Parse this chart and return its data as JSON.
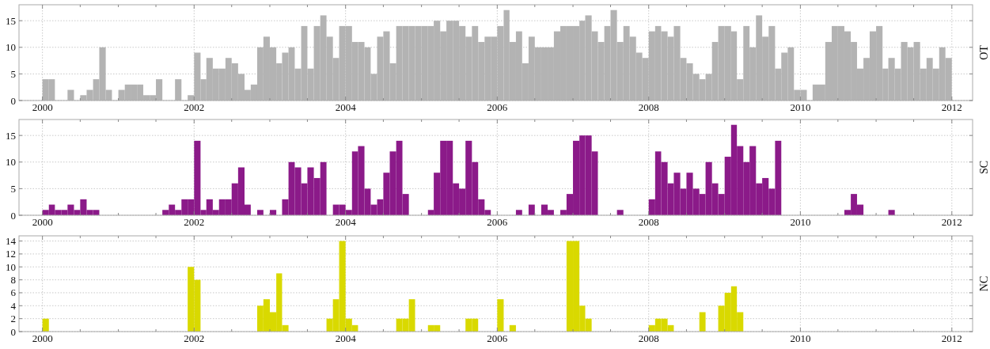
{
  "chart_data": [
    {
      "type": "bar",
      "ylabel": "OT",
      "grid": true,
      "xlim": [
        "1999-09-10",
        "2012-04-10"
      ],
      "ylim": [
        0,
        18
      ],
      "yticks": [
        0,
        5,
        10,
        15
      ],
      "xticks": [
        "2000",
        {
          "value": "2000-07",
          "label": null
        },
        {
          "value": "2001",
          "label": null
        },
        {
          "value": "2001-07",
          "label": null
        },
        "2002",
        {
          "value": "2002-07",
          "label": null
        },
        {
          "value": "2003",
          "label": null
        },
        {
          "value": "2003-07",
          "label": null
        },
        "2004",
        {
          "value": "2004-07",
          "label": null
        },
        {
          "value": "2005",
          "label": null
        },
        {
          "value": "2005-07",
          "label": null
        },
        "2006",
        {
          "value": "2006-07",
          "label": null
        },
        {
          "value": "2007",
          "label": null
        },
        {
          "value": "2007-07",
          "label": null
        },
        "2008",
        {
          "value": "2008-07",
          "label": null
        },
        {
          "value": "2009",
          "label": null
        },
        {
          "value": "2009-07",
          "label": null
        },
        "2010",
        {
          "value": "2010-07",
          "label": null
        },
        {
          "value": "2011",
          "label": null
        },
        {
          "value": "2011-07",
          "label": null
        },
        "2012"
      ],
      "x": [
        "2000-01",
        "2000-02",
        "2000-03",
        "2000-04",
        "2000-05",
        "2000-06",
        "2000-07",
        "2000-08",
        "2000-09",
        "2000-10",
        "2000-11",
        "2000-12",
        "2001-01",
        "2001-02",
        "2001-03",
        "2001-04",
        "2001-05",
        "2001-06",
        "2001-07",
        "2001-08",
        "2001-09",
        "2001-10",
        "2001-11",
        "2001-12",
        "2002-01",
        "2002-02",
        "2002-03",
        "2002-04",
        "2002-05",
        "2002-06",
        "2002-07",
        "2002-08",
        "2002-09",
        "2002-10",
        "2002-11",
        "2002-12",
        "2003-01",
        "2003-02",
        "2003-03",
        "2003-04",
        "2003-05",
        "2003-06",
        "2003-07",
        "2003-08",
        "2003-09",
        "2003-10",
        "2003-11",
        "2003-12",
        "2004-01",
        "2004-02",
        "2004-03",
        "2004-04",
        "2004-05",
        "2004-06",
        "2004-07",
        "2004-08",
        "2004-09",
        "2004-10",
        "2004-11",
        "2004-12",
        "2005-01",
        "2005-02",
        "2005-03",
        "2005-04",
        "2005-05",
        "2005-06",
        "2005-07",
        "2005-08",
        "2005-09",
        "2005-10",
        "2005-11",
        "2005-12",
        "2006-01",
        "2006-02",
        "2006-03",
        "2006-04",
        "2006-05",
        "2006-06",
        "2006-07",
        "2006-08",
        "2006-09",
        "2006-10",
        "2006-11",
        "2006-12",
        "2007-01",
        "2007-02",
        "2007-03",
        "2007-04",
        "2007-05",
        "2007-06",
        "2007-07",
        "2007-08",
        "2007-09",
        "2007-10",
        "2007-11",
        "2007-12",
        "2008-01",
        "2008-02",
        "2008-03",
        "2008-04",
        "2008-05",
        "2008-06",
        "2008-07",
        "2008-08",
        "2008-09",
        "2008-10",
        "2008-11",
        "2008-12",
        "2009-01",
        "2009-02",
        "2009-03",
        "2009-04",
        "2009-05",
        "2009-06",
        "2009-07",
        "2009-08",
        "2009-09",
        "2009-10",
        "2009-11",
        "2009-12",
        "2010-01",
        "2010-02",
        "2010-03",
        "2010-04",
        "2010-05",
        "2010-06",
        "2010-07",
        "2010-08",
        "2010-09",
        "2010-10",
        "2010-11",
        "2010-12",
        "2011-01",
        "2011-02",
        "2011-03",
        "2011-04",
        "2011-05",
        "2011-06",
        "2011-07",
        "2011-08",
        "2011-09",
        "2011-10",
        "2011-11",
        "2011-12"
      ],
      "series": [
        {
          "color": "#b3b3b3",
          "values": [
            4,
            4,
            0,
            0,
            2,
            0,
            1,
            2,
            4,
            10,
            2,
            0,
            2,
            3,
            3,
            3,
            1,
            1,
            4,
            0,
            0,
            4,
            0,
            1,
            9,
            4,
            8,
            6,
            6,
            8,
            7,
            5,
            2,
            3,
            10,
            12,
            10,
            7,
            9,
            10,
            6,
            14,
            6,
            14,
            16,
            12,
            8,
            14,
            14,
            11,
            11,
            10,
            5,
            12,
            13,
            7,
            14,
            14,
            14,
            14,
            14,
            14,
            15,
            13,
            15,
            15,
            14,
            12,
            14,
            11,
            12,
            12,
            14,
            17,
            11,
            13,
            7,
            12,
            10,
            10,
            10,
            13,
            14,
            14,
            14,
            15,
            16,
            13,
            11,
            14,
            17,
            11,
            14,
            12,
            9,
            8,
            13,
            14,
            13,
            12,
            14,
            8,
            7,
            5,
            4,
            5,
            11,
            14,
            14,
            13,
            4,
            14,
            10,
            16,
            12,
            14,
            6,
            9,
            10,
            2,
            2,
            0,
            3,
            3,
            11,
            14,
            14,
            13,
            11,
            6,
            8,
            13,
            14,
            6,
            8,
            6,
            11,
            10,
            11,
            6,
            8,
            6,
            10,
            8
          ]
        }
      ]
    },
    {
      "type": "bar",
      "ylabel": "SC",
      "grid": true,
      "xlim": [
        "1999-09-10",
        "2012-04-10"
      ],
      "ylim": [
        0,
        18
      ],
      "yticks": [
        0,
        5,
        10,
        15
      ],
      "xticks": [
        "2000",
        {
          "value": "2000-07",
          "label": null
        },
        {
          "value": "2001",
          "label": null
        },
        {
          "value": "2001-07",
          "label": null
        },
        "2002",
        {
          "value": "2002-07",
          "label": null
        },
        {
          "value": "2003",
          "label": null
        },
        {
          "value": "2003-07",
          "label": null
        },
        "2004",
        {
          "value": "2004-07",
          "label": null
        },
        {
          "value": "2005",
          "label": null
        },
        {
          "value": "2005-07",
          "label": null
        },
        "2006",
        {
          "value": "2006-07",
          "label": null
        },
        {
          "value": "2007",
          "label": null
        },
        {
          "value": "2007-07",
          "label": null
        },
        "2008",
        {
          "value": "2008-07",
          "label": null
        },
        {
          "value": "2009",
          "label": null
        },
        {
          "value": "2009-07",
          "label": null
        },
        "2010",
        {
          "value": "2010-07",
          "label": null
        },
        {
          "value": "2011",
          "label": null
        },
        {
          "value": "2011-07",
          "label": null
        },
        "2012"
      ],
      "x": [
        "2000-01",
        "2000-02",
        "2000-03",
        "2000-04",
        "2000-05",
        "2000-06",
        "2000-07",
        "2000-08",
        "2000-09",
        "2000-10",
        "2000-11",
        "2000-12",
        "2001-01",
        "2001-02",
        "2001-03",
        "2001-04",
        "2001-05",
        "2001-06",
        "2001-07",
        "2001-08",
        "2001-09",
        "2001-10",
        "2001-11",
        "2001-12",
        "2002-01",
        "2002-02",
        "2002-03",
        "2002-04",
        "2002-05",
        "2002-06",
        "2002-07",
        "2002-08",
        "2002-09",
        "2002-10",
        "2002-11",
        "2002-12",
        "2003-01",
        "2003-02",
        "2003-03",
        "2003-04",
        "2003-05",
        "2003-06",
        "2003-07",
        "2003-08",
        "2003-09",
        "2003-10",
        "2003-11",
        "2003-12",
        "2004-01",
        "2004-02",
        "2004-03",
        "2004-04",
        "2004-05",
        "2004-06",
        "2004-07",
        "2004-08",
        "2004-09",
        "2004-10",
        "2004-11",
        "2004-12",
        "2005-01",
        "2005-02",
        "2005-03",
        "2005-04",
        "2005-05",
        "2005-06",
        "2005-07",
        "2005-08",
        "2005-09",
        "2005-10",
        "2005-11",
        "2005-12",
        "2006-01",
        "2006-02",
        "2006-03",
        "2006-04",
        "2006-05",
        "2006-06",
        "2006-07",
        "2006-08",
        "2006-09",
        "2006-10",
        "2006-11",
        "2006-12",
        "2007-01",
        "2007-02",
        "2007-03",
        "2007-04",
        "2007-05",
        "2007-06",
        "2007-07",
        "2007-08",
        "2007-09",
        "2007-10",
        "2007-11",
        "2007-12",
        "2008-01",
        "2008-02",
        "2008-03",
        "2008-04",
        "2008-05",
        "2008-06",
        "2008-07",
        "2008-08",
        "2008-09",
        "2008-10",
        "2008-11",
        "2008-12",
        "2009-01",
        "2009-02",
        "2009-03",
        "2009-04",
        "2009-05",
        "2009-06",
        "2009-07",
        "2009-08",
        "2009-09",
        "2009-10",
        "2009-11",
        "2009-12",
        "2010-01",
        "2010-02",
        "2010-03",
        "2010-04",
        "2010-05",
        "2010-06",
        "2010-07",
        "2010-08",
        "2010-09",
        "2010-10",
        "2010-11",
        "2010-12",
        "2011-01",
        "2011-02",
        "2011-03",
        "2011-04",
        "2011-05",
        "2011-06",
        "2011-07",
        "2011-08",
        "2011-09",
        "2011-10",
        "2011-11",
        "2011-12"
      ],
      "series": [
        {
          "color": "#8b1a89",
          "values": [
            1,
            2,
            1,
            1,
            2,
            1,
            3,
            1,
            1,
            0,
            0,
            0,
            0,
            0,
            0,
            0,
            0,
            0,
            0,
            1,
            2,
            1,
            3,
            3,
            14,
            1,
            3,
            1,
            3,
            3,
            6,
            9,
            2,
            0,
            1,
            0,
            1,
            0,
            3,
            10,
            9,
            6,
            9,
            7,
            10,
            0,
            2,
            2,
            1,
            12,
            13,
            5,
            2,
            3,
            8,
            12,
            14,
            4,
            0,
            0,
            0,
            1,
            8,
            14,
            14,
            6,
            5,
            14,
            10,
            3,
            1,
            0,
            0,
            0,
            0,
            1,
            0,
            2,
            0,
            2,
            1,
            0,
            1,
            4,
            14,
            15,
            15,
            12,
            0,
            0,
            0,
            1,
            0,
            0,
            0,
            0,
            3,
            12,
            10,
            6,
            8,
            5,
            8,
            5,
            4,
            10,
            6,
            4,
            11,
            17,
            13,
            10,
            13,
            6,
            7,
            5,
            14,
            0,
            0,
            0,
            0,
            0,
            0,
            0,
            0,
            0,
            0,
            1,
            4,
            2,
            0,
            0,
            0,
            0,
            1,
            0,
            0,
            0,
            0,
            0,
            0,
            0,
            0,
            0
          ]
        }
      ]
    },
    {
      "type": "bar",
      "ylabel": "NC",
      "grid": true,
      "xlim": [
        "1999-09-10",
        "2012-04-10"
      ],
      "ylim": [
        0,
        14.8
      ],
      "yticks": [
        0,
        2,
        4,
        6,
        8,
        10,
        12,
        14
      ],
      "xticks": [
        "2000",
        {
          "value": "2000-07",
          "label": null
        },
        {
          "value": "2001",
          "label": null
        },
        {
          "value": "2001-07",
          "label": null
        },
        "2002",
        {
          "value": "2002-07",
          "label": null
        },
        {
          "value": "2003",
          "label": null
        },
        {
          "value": "2003-07",
          "label": null
        },
        "2004",
        {
          "value": "2004-07",
          "label": null
        },
        {
          "value": "2005",
          "label": null
        },
        {
          "value": "2005-07",
          "label": null
        },
        "2006",
        {
          "value": "2006-07",
          "label": null
        },
        {
          "value": "2007",
          "label": null
        },
        {
          "value": "2007-07",
          "label": null
        },
        "2008",
        {
          "value": "2008-07",
          "label": null
        },
        {
          "value": "2009",
          "label": null
        },
        {
          "value": "2009-07",
          "label": null
        },
        "2010",
        {
          "value": "2010-07",
          "label": null
        },
        {
          "value": "2011",
          "label": null
        },
        {
          "value": "2011-07",
          "label": null
        },
        "2012"
      ],
      "x": [
        "2000-01",
        "2000-02",
        "2000-03",
        "2000-04",
        "2000-05",
        "2000-06",
        "2000-07",
        "2000-08",
        "2000-09",
        "2000-10",
        "2000-11",
        "2000-12",
        "2001-01",
        "2001-02",
        "2001-03",
        "2001-04",
        "2001-05",
        "2001-06",
        "2001-07",
        "2001-08",
        "2001-09",
        "2001-10",
        "2001-11",
        "2001-12",
        "2002-01",
        "2002-02",
        "2002-03",
        "2002-04",
        "2002-05",
        "2002-06",
        "2002-07",
        "2002-08",
        "2002-09",
        "2002-10",
        "2002-11",
        "2002-12",
        "2003-01",
        "2003-02",
        "2003-03",
        "2003-04",
        "2003-05",
        "2003-06",
        "2003-07",
        "2003-08",
        "2003-09",
        "2003-10",
        "2003-11",
        "2003-12",
        "2004-01",
        "2004-02",
        "2004-03",
        "2004-04",
        "2004-05",
        "2004-06",
        "2004-07",
        "2004-08",
        "2004-09",
        "2004-10",
        "2004-11",
        "2004-12",
        "2005-01",
        "2005-02",
        "2005-03",
        "2005-04",
        "2005-05",
        "2005-06",
        "2005-07",
        "2005-08",
        "2005-09",
        "2005-10",
        "2005-11",
        "2005-12",
        "2006-01",
        "2006-02",
        "2006-03",
        "2006-04",
        "2006-05",
        "2006-06",
        "2006-07",
        "2006-08",
        "2006-09",
        "2006-10",
        "2006-11",
        "2006-12",
        "2007-01",
        "2007-02",
        "2007-03",
        "2007-04",
        "2007-05",
        "2007-06",
        "2007-07",
        "2007-08",
        "2007-09",
        "2007-10",
        "2007-11",
        "2007-12",
        "2008-01",
        "2008-02",
        "2008-03",
        "2008-04",
        "2008-05",
        "2008-06",
        "2008-07",
        "2008-08",
        "2008-09",
        "2008-10",
        "2008-11",
        "2008-12",
        "2009-01",
        "2009-02",
        "2009-03",
        "2009-04",
        "2009-05",
        "2009-06",
        "2009-07",
        "2009-08",
        "2009-09",
        "2009-10",
        "2009-11",
        "2009-12",
        "2010-01",
        "2010-02",
        "2010-03",
        "2010-04",
        "2010-05",
        "2010-06",
        "2010-07",
        "2010-08",
        "2010-09",
        "2010-10",
        "2010-11",
        "2010-12",
        "2011-01",
        "2011-02",
        "2011-03",
        "2011-04",
        "2011-05",
        "2011-06",
        "2011-07",
        "2011-08",
        "2011-09",
        "2011-10",
        "2011-11",
        "2011-12"
      ],
      "series": [
        {
          "color": "#d9d900",
          "values": [
            2,
            0,
            0,
            0,
            0,
            0,
            0,
            0,
            0,
            0,
            0,
            0,
            0,
            0,
            0,
            0,
            0,
            0,
            0,
            0,
            0,
            0,
            0,
            10,
            8,
            0,
            0,
            0,
            0,
            0,
            0,
            0,
            0,
            0,
            4,
            5,
            3,
            9,
            1,
            0,
            0,
            0,
            0,
            0,
            0,
            2,
            5,
            14,
            2,
            1,
            0,
            0,
            0,
            0,
            0,
            0,
            2,
            2,
            5,
            0,
            0,
            1,
            1,
            0,
            0,
            0,
            0,
            2,
            2,
            0,
            0,
            0,
            5,
            0,
            1,
            0,
            0,
            0,
            0,
            0,
            0,
            0,
            0,
            14,
            14,
            4,
            2,
            0,
            0,
            0,
            0,
            0,
            0,
            0,
            0,
            0,
            1,
            2,
            2,
            1,
            0,
            0,
            0,
            0,
            3,
            0,
            0,
            4,
            6,
            7,
            3,
            0,
            0,
            0,
            0,
            0,
            0,
            0,
            0,
            0,
            0,
            0,
            0,
            0,
            0,
            0,
            0,
            0,
            0,
            0,
            0,
            0,
            0,
            0,
            0,
            0,
            0,
            0,
            0,
            0,
            0,
            0,
            0,
            0
          ]
        }
      ]
    }
  ]
}
